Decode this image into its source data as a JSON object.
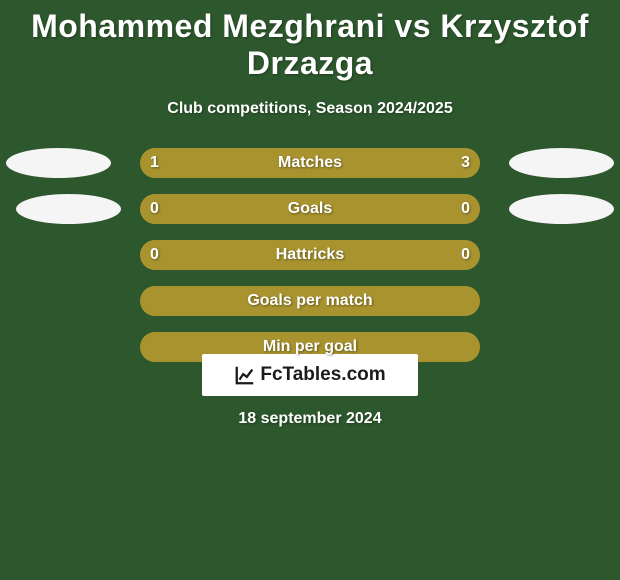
{
  "title": "Mohammed Mezghrani vs Krzysztof Drzazga",
  "subtitle": "Club competitions, Season 2024/2025",
  "date": "18 september 2024",
  "logo": "FcTables.com",
  "colors": {
    "background": "#2d572d",
    "avatar": "#f5f5f5",
    "bar_olive": "#a8932f",
    "bar_olive_light": "#b7a23a",
    "text": "#ffffff"
  },
  "avatars": {
    "row1_left": true,
    "row1_right": true,
    "row2_left": true,
    "row2_right": true
  },
  "stats": [
    {
      "label": "Matches",
      "left_value": "1",
      "right_value": "3",
      "left_fill_pct": 25,
      "right_fill_pct": 75,
      "left_fill_color": "#a8932f",
      "right_fill_color": "#a8932f",
      "bar_bg": "#a8932f"
    },
    {
      "label": "Goals",
      "left_value": "0",
      "right_value": "0",
      "left_fill_pct": 50,
      "right_fill_pct": 50,
      "left_fill_color": "#a8932f",
      "right_fill_color": "#a8932f",
      "bar_bg": "#a8932f"
    },
    {
      "label": "Hattricks",
      "left_value": "0",
      "right_value": "0",
      "left_fill_pct": 50,
      "right_fill_pct": 50,
      "left_fill_color": "#a8932f",
      "right_fill_color": "#a8932f",
      "bar_bg": "#a8932f"
    },
    {
      "label": "Goals per match",
      "left_value": "",
      "right_value": "",
      "left_fill_pct": 50,
      "right_fill_pct": 50,
      "left_fill_color": "#a8932f",
      "right_fill_color": "#a8932f",
      "bar_bg": "#a8932f"
    },
    {
      "label": "Min per goal",
      "left_value": "",
      "right_value": "",
      "left_fill_pct": 50,
      "right_fill_pct": 50,
      "left_fill_color": "#a8932f",
      "right_fill_color": "#a8932f",
      "bar_bg": "#a8932f"
    }
  ]
}
